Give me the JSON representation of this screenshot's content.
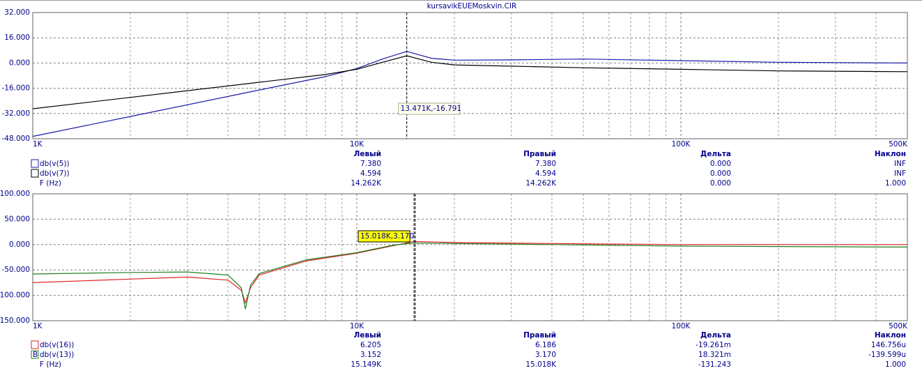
{
  "title": "kursavikEUEMoskvin.CIR",
  "chart_data": [
    {
      "type": "line",
      "xscale": "log",
      "grid": true,
      "xlim": [
        1000,
        500000
      ],
      "xticks": [
        {
          "value": 1000,
          "label": "1K"
        },
        {
          "value": 10000,
          "label": "10K"
        },
        {
          "value": 100000,
          "label": "100K"
        },
        {
          "value": 500000,
          "label": "500K"
        }
      ],
      "xgrid_minor": [
        2000,
        3000,
        4000,
        5000,
        6000,
        7000,
        8000,
        9000,
        20000,
        30000,
        40000,
        50000,
        60000,
        70000,
        80000,
        90000,
        200000,
        300000,
        400000
      ],
      "ylim": [
        -48,
        32
      ],
      "yticks": [
        {
          "value": -48,
          "label": "-48.000"
        },
        {
          "value": -32,
          "label": "-32.000"
        },
        {
          "value": -16,
          "label": "-16.000"
        },
        {
          "value": 0,
          "label": "0.000"
        },
        {
          "value": 16,
          "label": "16.000"
        },
        {
          "value": 32,
          "label": "32.000"
        }
      ],
      "x": [
        1000,
        2000,
        5000,
        8000,
        10000,
        12000,
        14262,
        17000,
        20000,
        30000,
        50000,
        100000,
        200000,
        500000
      ],
      "series": [
        {
          "name": "db(v(5))",
          "color": "#1a1aa8",
          "values": [
            -46.5,
            -33.9,
            -17.1,
            -8.6,
            -3.5,
            2.5,
            7.38,
            3,
            1.8,
            2,
            2.5,
            1.5,
            0.5,
            0
          ]
        },
        {
          "name": "db(v(7))",
          "color": "#000000",
          "values": [
            -29,
            -21.8,
            -12.2,
            -7.3,
            -4,
            0.5,
            4.594,
            0.5,
            -1.2,
            -2,
            -3,
            -4,
            -5,
            -5.5
          ]
        }
      ],
      "cursors": [
        14262
      ],
      "annotation": "13.471K,-16.791"
    },
    {
      "type": "line",
      "xscale": "log",
      "grid": true,
      "xlim": [
        1000,
        500000
      ],
      "xticks": [
        {
          "value": 1000,
          "label": "1K"
        },
        {
          "value": 10000,
          "label": "10K"
        },
        {
          "value": 100000,
          "label": "100K"
        },
        {
          "value": 500000,
          "label": "500K"
        }
      ],
      "xgrid_minor": [
        2000,
        3000,
        4000,
        5000,
        6000,
        7000,
        8000,
        9000,
        20000,
        30000,
        40000,
        50000,
        60000,
        70000,
        80000,
        90000,
        200000,
        300000,
        400000
      ],
      "ylim": [
        -150,
        100
      ],
      "yticks": [
        {
          "value": -150,
          "label": "-150.000"
        },
        {
          "value": -100,
          "label": "-100.000"
        },
        {
          "value": -50,
          "label": "-50.000"
        },
        {
          "value": 0,
          "label": "0.000"
        },
        {
          "value": 50,
          "label": "50.000"
        },
        {
          "value": 100,
          "label": "100.000"
        }
      ],
      "x": [
        1000,
        2000,
        3000,
        4000,
        4400,
        4530,
        4700,
        5000,
        7000,
        10000,
        13000,
        15018,
        20000,
        40000,
        100000,
        500000
      ],
      "series": [
        {
          "name": "db(v(16))",
          "color": "#e02020",
          "values": [
            -75,
            -68,
            -64,
            -70,
            -90,
            -115,
            -85,
            -60,
            -32,
            -17,
            -2,
            6.2,
            4,
            2,
            0,
            0
          ]
        },
        {
          "name": "db(v(13))",
          "color": "#208020",
          "values": [
            -58,
            -55,
            -54,
            -60,
            -85,
            -127,
            -80,
            -57,
            -30,
            -16,
            -1,
            3.17,
            2,
            0,
            -3,
            -5
          ]
        }
      ],
      "cursors": [
        15149,
        15018
      ],
      "annotation": "15.018K,3.170"
    }
  ],
  "readouts": [
    {
      "headers": [
        "Левый",
        "Правый",
        "Дельта",
        "Наклон"
      ],
      "rows": [
        {
          "label": "db(v(5))",
          "values": [
            "7.380",
            "7.380",
            "0.000",
            "INF"
          ]
        },
        {
          "label": "db(v(7))",
          "values": [
            "4.594",
            "4.594",
            "0.000",
            "INF"
          ]
        },
        {
          "label": "F (Hz)",
          "values": [
            "14.262K",
            "14.262K",
            "0.000",
            "1.000"
          ]
        }
      ]
    },
    {
      "headers": [
        "Левый",
        "Правый",
        "Дельта",
        "Наклон"
      ],
      "rows": [
        {
          "label": "db(v(16))",
          "values": [
            "6.205",
            "6.186",
            "-19.261m",
            "146.756u"
          ]
        },
        {
          "marker": "B",
          "label": "db(v(13))",
          "values": [
            "3.152",
            "3.170",
            "18.321m",
            "-139.599u"
          ]
        },
        {
          "label": "F (Hz)",
          "values": [
            "15.149K",
            "15.018K",
            "-131.243",
            "1.000"
          ]
        }
      ]
    }
  ]
}
